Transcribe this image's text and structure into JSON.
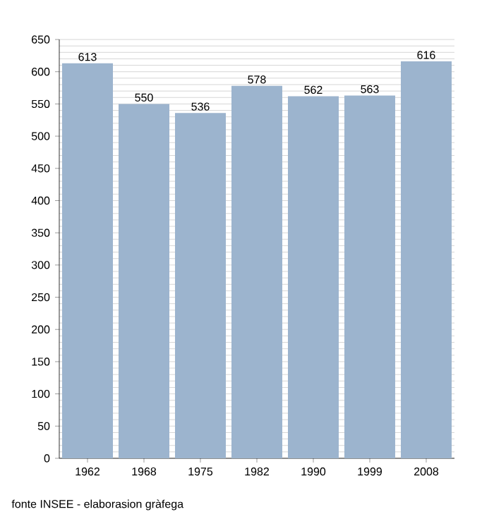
{
  "chart_data": {
    "type": "bar",
    "categories": [
      "1962",
      "1968",
      "1975",
      "1982",
      "1990",
      "1999",
      "2008"
    ],
    "values": [
      613,
      550,
      536,
      578,
      562,
      563,
      616
    ],
    "color": "#9cb4ce",
    "data_labels": true,
    "grid": "y",
    "ylim": [
      0,
      650
    ],
    "yticks": [
      0,
      50,
      100,
      150,
      200,
      250,
      300,
      350,
      400,
      450,
      500,
      550,
      600,
      650
    ],
    "annotations": [
      "fonte INSEE - elaborasion gràfega"
    ]
  }
}
